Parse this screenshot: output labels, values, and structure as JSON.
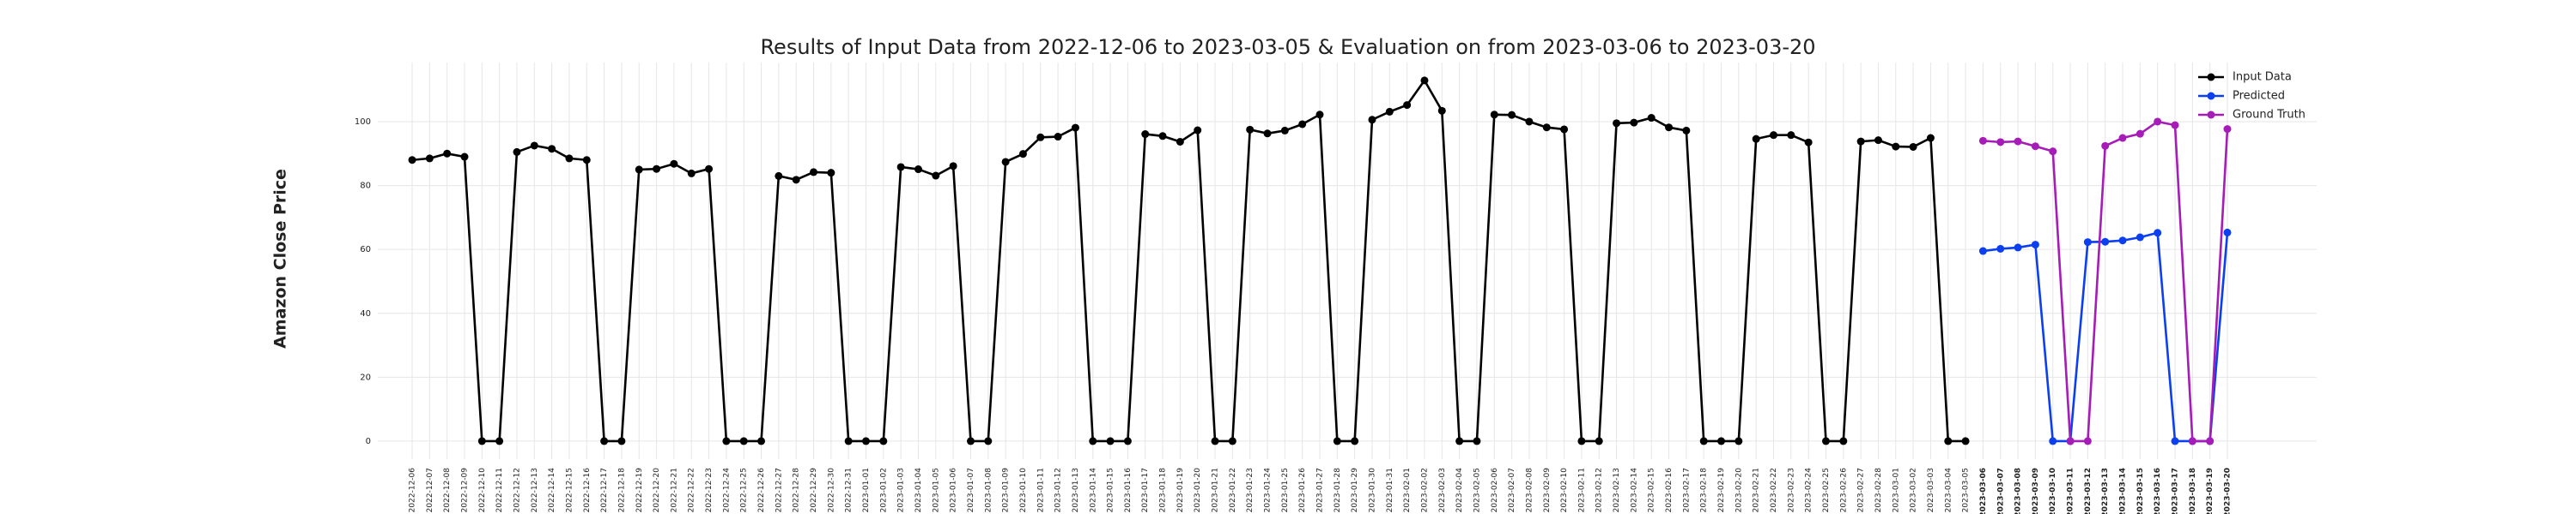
{
  "chart_data": {
    "type": "line",
    "title": "Results of Input Data from 2022-12-06 to 2023-03-05 & Evaluation on from 2023-03-06 to 2023-03-20",
    "ylabel": "Amazon Close Price",
    "x": [
      "2022-12-06",
      "2022-12-07",
      "2022-12-08",
      "2022-12-09",
      "2022-12-10",
      "2022-12-11",
      "2022-12-12",
      "2022-12-13",
      "2022-12-14",
      "2022-12-15",
      "2022-12-16",
      "2022-12-17",
      "2022-12-18",
      "2022-12-19",
      "2022-12-20",
      "2022-12-21",
      "2022-12-22",
      "2022-12-23",
      "2022-12-24",
      "2022-12-25",
      "2022-12-26",
      "2022-12-27",
      "2022-12-28",
      "2022-12-29",
      "2022-12-30",
      "2022-12-31",
      "2023-01-01",
      "2023-01-02",
      "2023-01-03",
      "2023-01-04",
      "2023-01-05",
      "2023-01-06",
      "2023-01-07",
      "2023-01-08",
      "2023-01-09",
      "2023-01-10",
      "2023-01-11",
      "2023-01-12",
      "2023-01-13",
      "2023-01-14",
      "2023-01-15",
      "2023-01-16",
      "2023-01-17",
      "2023-01-18",
      "2023-01-19",
      "2023-01-20",
      "2023-01-21",
      "2023-01-22",
      "2023-01-23",
      "2023-01-24",
      "2023-01-25",
      "2023-01-26",
      "2023-01-27",
      "2023-01-28",
      "2023-01-29",
      "2023-01-30",
      "2023-01-31",
      "2023-02-01",
      "2023-02-02",
      "2023-02-03",
      "2023-02-04",
      "2023-02-05",
      "2023-02-06",
      "2023-02-07",
      "2023-02-08",
      "2023-02-09",
      "2023-02-10",
      "2023-02-11",
      "2023-02-12",
      "2023-02-13",
      "2023-02-14",
      "2023-02-15",
      "2023-02-16",
      "2023-02-17",
      "2023-02-18",
      "2023-02-19",
      "2023-02-20",
      "2023-02-21",
      "2023-02-22",
      "2023-02-23",
      "2023-02-24",
      "2023-02-25",
      "2023-02-26",
      "2023-02-27",
      "2023-02-28",
      "2023-03-01",
      "2023-03-02",
      "2023-03-03",
      "2023-03-04",
      "2023-03-05",
      "2023-03-06",
      "2023-03-07",
      "2023-03-08",
      "2023-03-09",
      "2023-03-10",
      "2023-03-11",
      "2023-03-12",
      "2023-03-13",
      "2023-03-14",
      "2023-03-15",
      "2023-03-16",
      "2023-03-17",
      "2023-03-18",
      "2023-03-19",
      "2023-03-20"
    ],
    "series": [
      {
        "name": "Input Data",
        "color": "#000000",
        "values": [
          88,
          88.5,
          90,
          89,
          0,
          0,
          90.5,
          92.5,
          91.5,
          88.5,
          88,
          0,
          0,
          85,
          85.2,
          86.8,
          83.8,
          85.2,
          0,
          0,
          0,
          83,
          81.8,
          84.2,
          84,
          0,
          0,
          0,
          85.8,
          85.1,
          83.1,
          86.1,
          0,
          0,
          87.4,
          89.9,
          95.1,
          95.3,
          98.1,
          0,
          0,
          0,
          96.1,
          95.5,
          93.7,
          97.3,
          0,
          0,
          97.5,
          96.3,
          97.2,
          99.2,
          102.2,
          0,
          0,
          100.6,
          103.1,
          105.2,
          112.9,
          103.4,
          0,
          0,
          102.2,
          102.1,
          100,
          98.2,
          97.6,
          0,
          0,
          99.5,
          99.7,
          101.2,
          98.2,
          97.2,
          0,
          0,
          0,
          94.6,
          95.8,
          95.8,
          93.5,
          0,
          0,
          93.8,
          94.2,
          92.2,
          92.1,
          94.9,
          0,
          0,
          null,
          null,
          null,
          null,
          null,
          null,
          null,
          null,
          null,
          null,
          null,
          null,
          null,
          null,
          null
        ]
      },
      {
        "name": "Predicted",
        "color": "#0b3ff0",
        "values": [
          null,
          null,
          null,
          null,
          null,
          null,
          null,
          null,
          null,
          null,
          null,
          null,
          null,
          null,
          null,
          null,
          null,
          null,
          null,
          null,
          null,
          null,
          null,
          null,
          null,
          null,
          null,
          null,
          null,
          null,
          null,
          null,
          null,
          null,
          null,
          null,
          null,
          null,
          null,
          null,
          null,
          null,
          null,
          null,
          null,
          null,
          null,
          null,
          null,
          null,
          null,
          null,
          null,
          null,
          null,
          null,
          null,
          null,
          null,
          null,
          null,
          null,
          null,
          null,
          null,
          null,
          null,
          null,
          null,
          null,
          null,
          null,
          null,
          null,
          null,
          null,
          null,
          null,
          null,
          null,
          null,
          null,
          null,
          null,
          null,
          null,
          null,
          null,
          null,
          null,
          59.5,
          60.2,
          60.6,
          61.5,
          0,
          0,
          62.3,
          62.4,
          62.8,
          63.8,
          65.2,
          0,
          0,
          0,
          65.3
        ]
      },
      {
        "name": "Ground Truth",
        "color": "#a51cb7",
        "values": [
          null,
          null,
          null,
          null,
          null,
          null,
          null,
          null,
          null,
          null,
          null,
          null,
          null,
          null,
          null,
          null,
          null,
          null,
          null,
          null,
          null,
          null,
          null,
          null,
          null,
          null,
          null,
          null,
          null,
          null,
          null,
          null,
          null,
          null,
          null,
          null,
          null,
          null,
          null,
          null,
          null,
          null,
          null,
          null,
          null,
          null,
          null,
          null,
          null,
          null,
          null,
          null,
          null,
          null,
          null,
          null,
          null,
          null,
          null,
          null,
          null,
          null,
          null,
          null,
          null,
          null,
          null,
          null,
          null,
          null,
          null,
          null,
          null,
          null,
          null,
          null,
          null,
          null,
          null,
          null,
          null,
          null,
          null,
          null,
          null,
          null,
          null,
          null,
          null,
          null,
          94,
          93.6,
          93.8,
          92.3,
          90.7,
          0,
          0,
          92.4,
          94.9,
          96.2,
          100,
          98.9,
          0,
          0,
          97.7
        ]
      }
    ],
    "ylim": [
      -5.65,
      118.5
    ],
    "yticks": [
      0,
      20,
      40,
      60,
      80,
      100
    ],
    "grid": true,
    "legend": "upper right"
  }
}
